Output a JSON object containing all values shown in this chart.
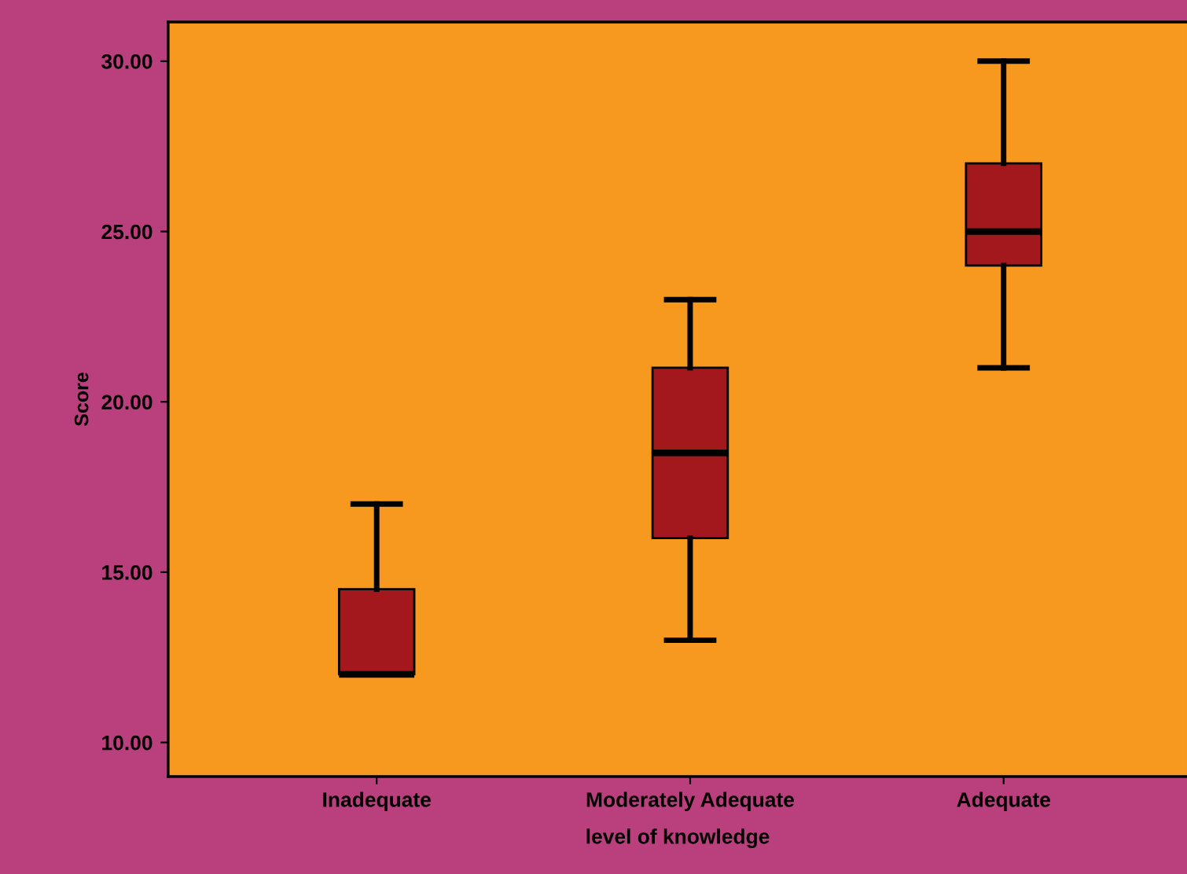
{
  "chart_data": {
    "type": "box",
    "xlabel": "level of knowledge",
    "ylabel": "Score",
    "categories": [
      "Inadequate",
      "Moderately Adequate",
      "Adequate"
    ],
    "color": "#a3181c",
    "boxes": [
      {
        "low": 12,
        "q1": 12,
        "median": 12,
        "q3": 14.5,
        "high": 17
      },
      {
        "low": 13,
        "q1": 16,
        "median": 18.5,
        "q3": 21,
        "high": 23
      },
      {
        "low": 21,
        "q1": 24,
        "median": 25,
        "q3": 27,
        "high": 30
      }
    ],
    "ylim": [
      9.0,
      31.15
    ],
    "yticks": [
      {
        "value": 10,
        "label": "10.00"
      },
      {
        "value": 15,
        "label": "15.00"
      },
      {
        "value": 20,
        "label": "20.00"
      },
      {
        "value": 25,
        "label": "25.00"
      },
      {
        "value": 30,
        "label": "30.00"
      }
    ],
    "grid": false,
    "legend": false
  }
}
